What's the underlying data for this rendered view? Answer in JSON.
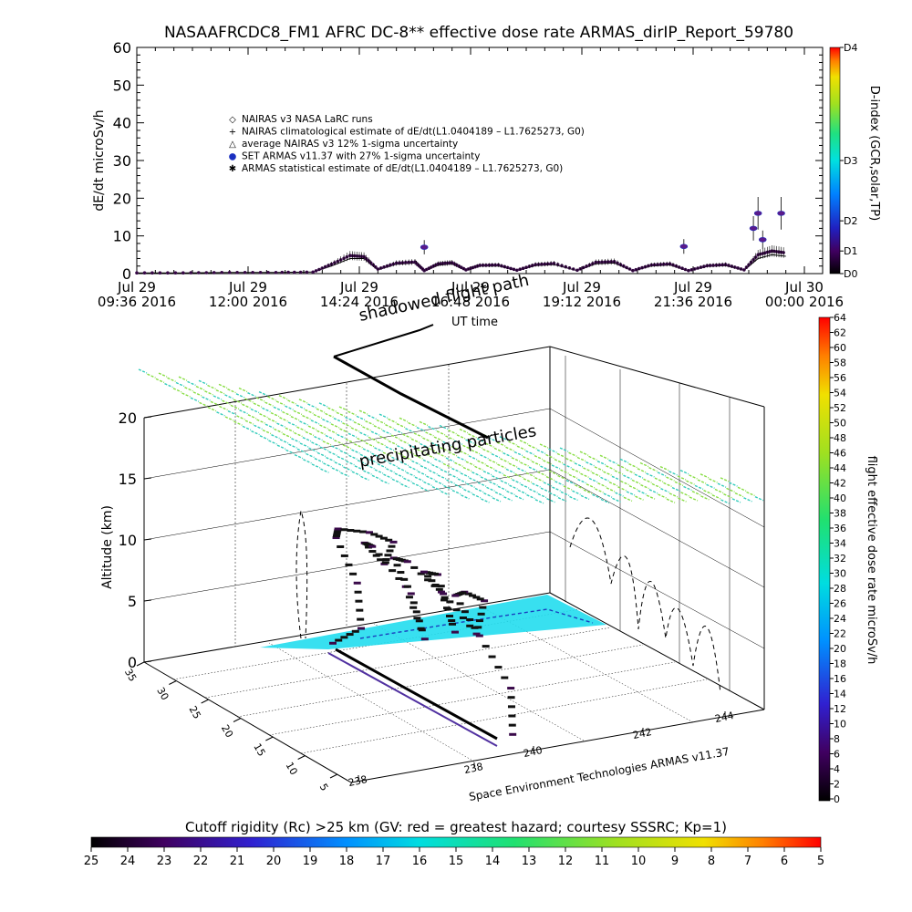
{
  "title": "NASAAFRCDC8_FM1 AFRC DC-8** effective dose rate ARMAS_dirIP_Report_59780",
  "chart_data": [
    {
      "type": "scatter",
      "ylabel": "dE/dt microSv/h",
      "ylim": [
        0,
        60
      ],
      "yticks": [
        "0",
        "10",
        "20",
        "30",
        "40",
        "50",
        "60"
      ],
      "xticks": [
        {
          "line1": "Jul 29",
          "line2": "09:36 2016"
        },
        {
          "line1": "Jul 29",
          "line2": "12:00 2016"
        },
        {
          "line1": "Jul 29",
          "line2": "14:24 2016"
        },
        {
          "line1": "Jul 29",
          "line2": "16:48 2016"
        },
        {
          "line1": "Jul 29",
          "line2": "19:12 2016"
        },
        {
          "line1": "Jul 29",
          "line2": "21:36 2016"
        },
        {
          "line1": "Jul 30",
          "line2": "00:00 2016"
        }
      ],
      "legend": [
        {
          "symbol": "◇",
          "label": "NAIRAS v3 NASA LaRC runs"
        },
        {
          "symbol": "+",
          "label": "NAIRAS climatological estimate of dE/dt(L1.0404189 – L1.7625273, G0)"
        },
        {
          "symbol": "△",
          "label": "average NAIRAS v3 12% 1-sigma uncertainty"
        },
        {
          "symbol": "●",
          "label": "SET ARMAS v11.37 with 27% 1-sigma uncertainty"
        },
        {
          "symbol": "✱",
          "label": "ARMAS statistical estimate of dE/dt(L1.0404189 – L1.7625273, G0)"
        }
      ],
      "x_hours": [
        0.0,
        1.0,
        2.0,
        3.0,
        3.8,
        4.2,
        4.6,
        4.9,
        5.2,
        5.6,
        6.0,
        6.2,
        6.5,
        6.8,
        7.1,
        7.4,
        7.8,
        8.2,
        8.6,
        9.0,
        9.5,
        9.9,
        10.3,
        10.7,
        11.1,
        11.5,
        11.9,
        12.3,
        12.7,
        13.1,
        13.4,
        13.7,
        14.0
      ],
      "x_times": [
        "09:36",
        "10:36",
        "11:36",
        "12:36",
        "13:24",
        "13:48",
        "14:12",
        "14:30",
        "14:48",
        "15:12",
        "15:36",
        "15:48",
        "16:06",
        "16:24",
        "16:42",
        "17:00",
        "17:24",
        "17:48",
        "18:12",
        "18:36",
        "19:06",
        "19:30",
        "19:54",
        "20:18",
        "20:42",
        "21:06",
        "21:30",
        "21:54",
        "22:18",
        "22:42",
        "23:00",
        "23:18",
        "23:36"
      ],
      "armas": [
        0.2,
        0.2,
        0.3,
        0.3,
        0.4,
        2.5,
        4.8,
        4.5,
        1.2,
        2.8,
        3.1,
        0.8,
        2.6,
        2.9,
        1.0,
        2.2,
        2.3,
        0.9,
        2.4,
        2.7,
        0.9,
        3.0,
        3.2,
        0.8,
        2.3,
        2.6,
        0.8,
        2.1,
        2.4,
        1.0,
        5.0,
        6.0,
        5.5
      ],
      "nairas": [
        0.2,
        0.2,
        0.3,
        0.3,
        0.4,
        2.0,
        4.0,
        4.0,
        1.0,
        2.5,
        2.8,
        0.7,
        2.2,
        2.6,
        0.8,
        2.0,
        2.0,
        0.8,
        2.1,
        2.4,
        0.8,
        2.6,
        2.8,
        0.7,
        2.0,
        2.3,
        0.7,
        1.9,
        2.1,
        0.9,
        4.0,
        5.0,
        4.6
      ],
      "set_armas_spikes": [
        {
          "x_hours": 6.2,
          "y": 7.0
        },
        {
          "x_hours": 11.8,
          "y": 7.2
        },
        {
          "x_hours": 13.3,
          "y": 12.0
        },
        {
          "x_hours": 13.4,
          "y": 16.0
        },
        {
          "x_hours": 13.9,
          "y": 16.0
        },
        {
          "x_hours": 13.5,
          "y": 9.0
        }
      ],
      "right_axis": {
        "label": "D-index (GCR,solar,TP)",
        "ticks": [
          {
            "label": "D4",
            "value": 60
          },
          {
            "label": "D3",
            "value": 30
          },
          {
            "label": "D2",
            "value": 14
          },
          {
            "label": "D1",
            "value": 6
          },
          {
            "label": "D0",
            "value": 0
          }
        ]
      }
    },
    {
      "type": "scatter",
      "zlabel": "Altitude (km)",
      "zticks": [
        "0",
        "5",
        "10",
        "15",
        "20"
      ],
      "depth_ticks": [
        "35",
        "30",
        "25",
        "20",
        "15",
        "10",
        "5"
      ],
      "bottom_ticks": [
        "238",
        "238",
        "240",
        "242",
        "244"
      ],
      "annotations": [
        "shadowed flight path",
        "UT time",
        "precipitating particles"
      ],
      "watermark": "Space Environment Technologies ARMAS v11.37",
      "flight_altitude_km": [
        0.5,
        2,
        6,
        10,
        11,
        11,
        10.5,
        9,
        11,
        11,
        8,
        4,
        8,
        11.2,
        11.2,
        9,
        6,
        11,
        11.5,
        10,
        7,
        10,
        11,
        11,
        8,
        4,
        0.5
      ],
      "dose_colorbar": {
        "label": "flight effective dose rate microSv/h",
        "ticks": [
          "0",
          "2",
          "4",
          "6",
          "8",
          "10",
          "12",
          "14",
          "16",
          "18",
          "20",
          "22",
          "24",
          "26",
          "28",
          "30",
          "32",
          "34",
          "36",
          "38",
          "40",
          "42",
          "44",
          "46",
          "48",
          "50",
          "52",
          "54",
          "56",
          "58",
          "60",
          "62",
          "64"
        ]
      },
      "rigidity_colorbar": {
        "label": "Cutoff rigidity (Rc) >25 km (GV: red = greatest hazard; courtesy SSSRC; Kp=1)",
        "ticks": [
          "25",
          "24",
          "23",
          "22",
          "21",
          "20",
          "19",
          "18",
          "17",
          "16",
          "15",
          "14",
          "13",
          "12",
          "11",
          "10",
          "9",
          "8",
          "7",
          "6",
          "5"
        ]
      }
    }
  ],
  "colors": {
    "armas_marker": "#3a0a4a",
    "set_armas_marker": "#5a1a8a",
    "cutoff_plane": "#22ddee",
    "grid_shadow_green": "#88dd44",
    "grid_shadow_cyan": "#33ccbb"
  }
}
